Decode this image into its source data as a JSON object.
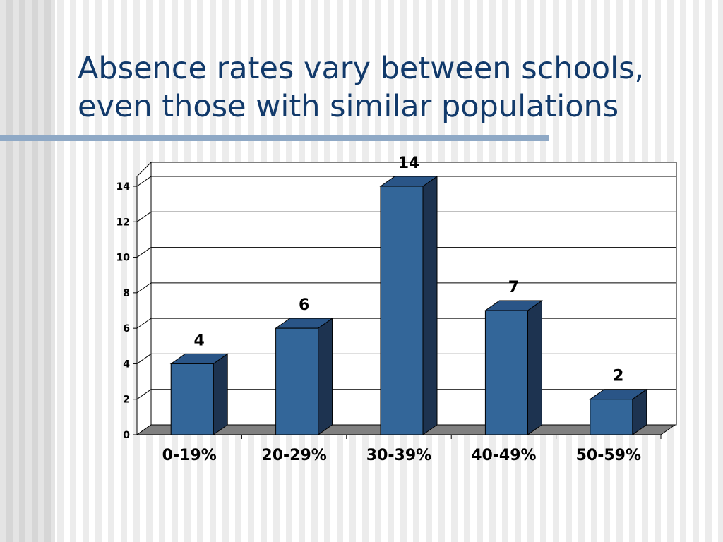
{
  "slide": {
    "title_lines": [
      "Absence rates vary between schools,",
      "even those with similar populations"
    ]
  },
  "chart_data": {
    "type": "bar",
    "categories": [
      "0-19%",
      "20-29%",
      "30-39%",
      "40-49%",
      "50-59%"
    ],
    "values": [
      4,
      6,
      14,
      7,
      2
    ],
    "ylim": [
      0,
      14
    ],
    "yticks": [
      0,
      2,
      4,
      6,
      8,
      10,
      12,
      14
    ],
    "title": "",
    "xlabel": "",
    "ylabel": "",
    "grid": true,
    "three_d": true,
    "colors": {
      "bar_front": "#336699",
      "bar_top": "#2a5587",
      "bar_side": "#1d3350",
      "floor": "#808080",
      "title": "#123a6b"
    }
  }
}
